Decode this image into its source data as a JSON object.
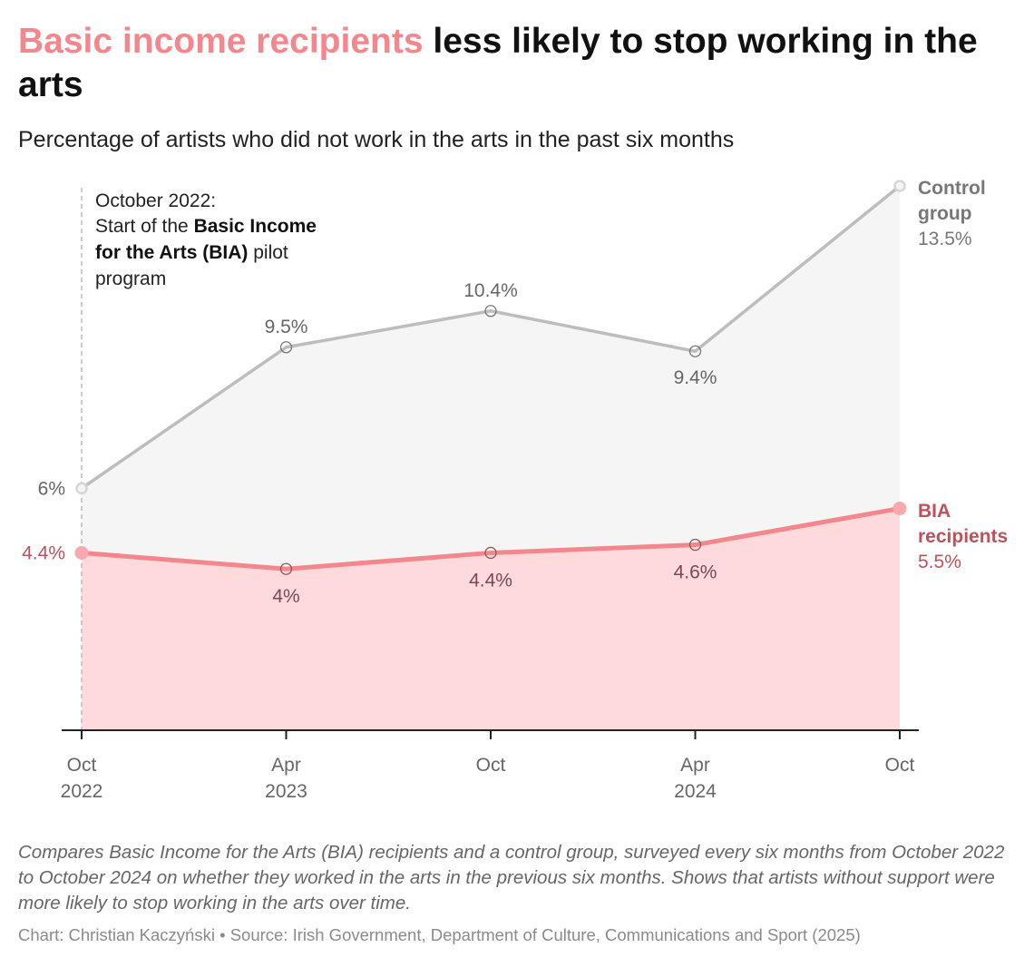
{
  "title": {
    "highlight": "Basic income recipients",
    "rest": " less likely to stop working in the arts"
  },
  "subtitle": "Percentage of artists who did not work in the arts in the past six months",
  "annotation": {
    "line1": "October 2022:",
    "line2_prefix": "Start of the ",
    "line2_bold": "Basic Income",
    "line3_bold": "for the Arts (BIA)",
    "line3_suffix": " pilot",
    "line4": "program"
  },
  "chart_data": {
    "type": "line",
    "x": [
      "Oct 2022",
      "Apr 2023",
      "Oct 2023",
      "Apr 2024",
      "Oct 2024"
    ],
    "x_tick_labels": [
      [
        "Oct",
        "2022"
      ],
      [
        "Apr",
        "2023"
      ],
      [
        "Oct",
        ""
      ],
      [
        "Apr",
        "2024"
      ],
      [
        "Oct",
        ""
      ]
    ],
    "ylim": [
      0,
      13.5
    ],
    "grid": false,
    "series": [
      {
        "key": "control",
        "name_lines": [
          "Control",
          "group"
        ],
        "end_label": "13.5%",
        "values": [
          6,
          9.5,
          10.4,
          9.4,
          13.5
        ],
        "data_labels": [
          "6%",
          "9.5%",
          "10.4%",
          "9.4%",
          "13.5%"
        ],
        "color": "#bdbdbd",
        "fill": "#f5f5f5",
        "label_color": "#777777"
      },
      {
        "key": "bia",
        "name_lines": [
          "BIA",
          "recipients"
        ],
        "end_label": "5.5%",
        "values": [
          4.4,
          4,
          4.4,
          4.6,
          5.5
        ],
        "data_labels": [
          "4.4%",
          "4%",
          "4.4%",
          "4.6%",
          "5.5%"
        ],
        "color": "#f4868c",
        "fill": "#ffdadd",
        "label_color": "#c0505a"
      }
    ]
  },
  "note": "Compares Basic Income for the Arts (BIA) recipients and a control group, surveyed every six months from October 2022 to October 2024 on whether they worked in the arts in the previous six months. Shows that artists without support were more likely to stop working in the arts over time.",
  "credit": "Chart: Christian Kaczyński • Source: Irish Government, Department of Culture, Communications and Sport (2025)"
}
